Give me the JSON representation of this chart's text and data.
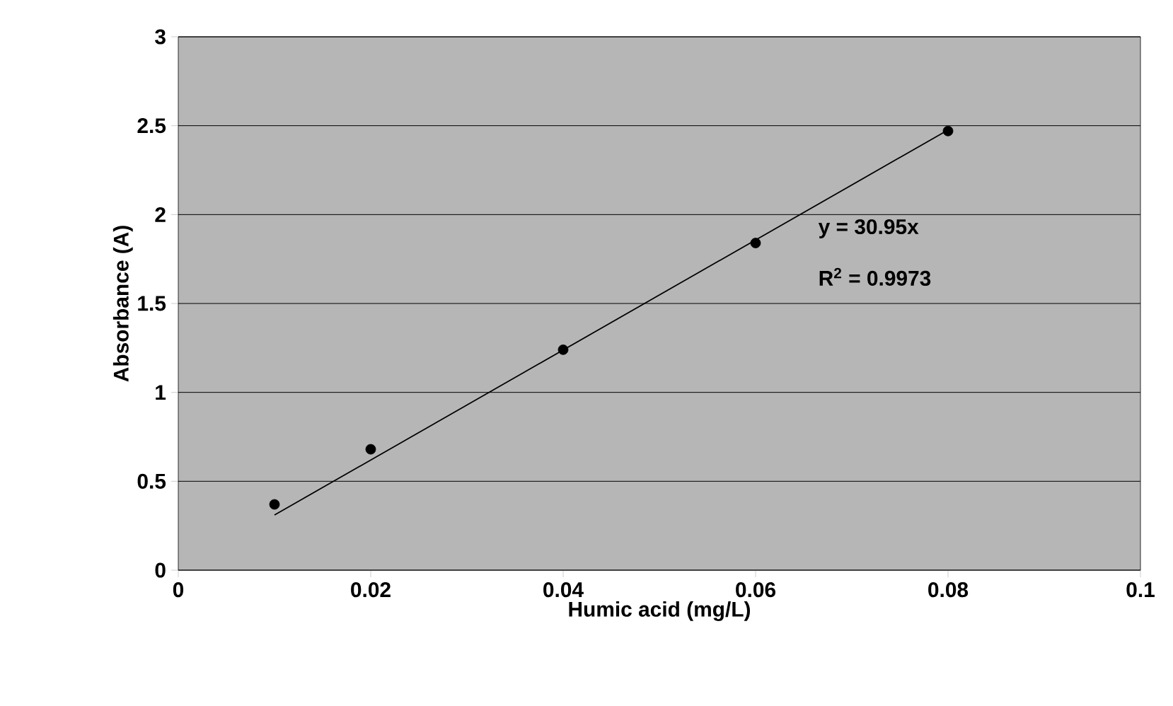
{
  "chart_data": {
    "type": "scatter",
    "xlabel": "Humic acid (mg/L)",
    "ylabel": "Absorbance (A)",
    "x": [
      0.01,
      0.02,
      0.04,
      0.06,
      0.08
    ],
    "series": [
      {
        "color": "#000000",
        "marker": "circle",
        "values": [
          0.37,
          0.68,
          1.24,
          1.84,
          2.47
        ]
      },
      {
        "type": "line",
        "color": "#000000",
        "x": [
          0.01,
          0.08
        ],
        "values": [
          0.31,
          2.476
        ],
        "line_style": "solid"
      }
    ],
    "annotations": [
      "y = 30.95x",
      "R$^{2}$ = 0.9973"
    ],
    "xlim": [
      0,
      0.1
    ],
    "ylim": [
      0,
      3
    ],
    "xticks": [
      0,
      0.02,
      0.04,
      0.06,
      0.08,
      0.1
    ],
    "yticks": [
      0,
      0.5,
      1,
      1.5,
      2,
      2.5,
      3
    ],
    "grid": "y"
  }
}
